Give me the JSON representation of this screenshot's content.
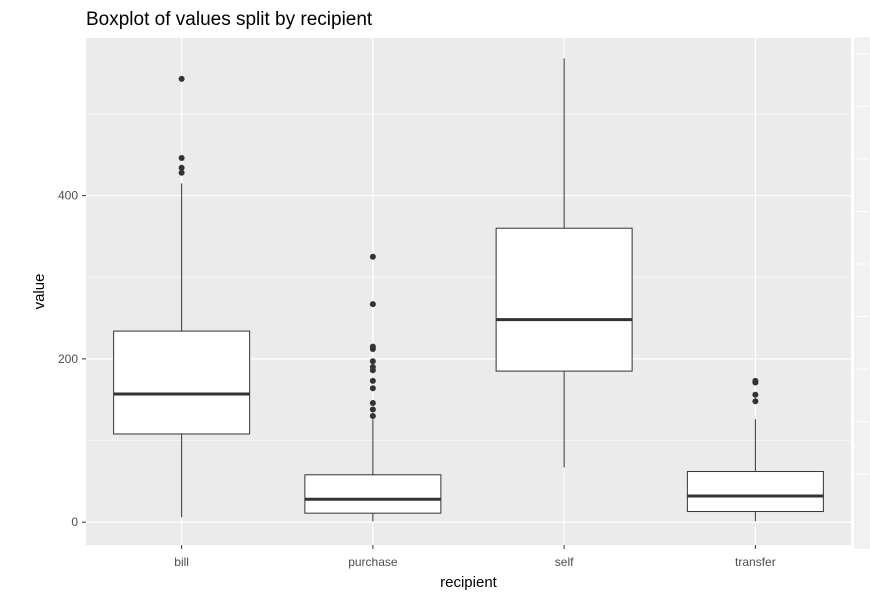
{
  "chart_data": {
    "type": "boxplot",
    "title": "Boxplot of values split by recipient",
    "xlabel": "recipient",
    "ylabel": "value",
    "ylim": [
      -28,
      593
    ],
    "y_ticks": [
      0,
      200,
      400
    ],
    "y_tick_labels": [
      "0",
      "200",
      "400"
    ],
    "grid": true,
    "colors": {
      "panel": "#ebebeb",
      "grid_major": "#ffffff",
      "box_fill": "#ffffff",
      "box_stroke": "#333333",
      "outlier": "#333333"
    },
    "categories": [
      "bill",
      "purchase",
      "self",
      "transfer"
    ],
    "boxes": [
      {
        "category": "bill",
        "whisker_low": 6,
        "q1": 108,
        "median": 157,
        "q3": 234,
        "whisker_high": 415,
        "outliers": [
          428,
          434,
          446,
          543
        ]
      },
      {
        "category": "purchase",
        "whisker_low": 1,
        "q1": 11,
        "median": 28,
        "q3": 58,
        "whisker_high": 126,
        "outliers": [
          130,
          138,
          146,
          164,
          173,
          186,
          190,
          197,
          212,
          215,
          267,
          325
        ]
      },
      {
        "category": "self",
        "whisker_low": 67,
        "q1": 185,
        "median": 248,
        "q3": 360,
        "whisker_high": 568,
        "outliers": []
      },
      {
        "category": "transfer",
        "whisker_low": 1,
        "q1": 13,
        "median": 32,
        "q3": 62,
        "whisker_high": 126,
        "outliers": [
          148,
          156,
          171,
          173
        ]
      }
    ]
  }
}
